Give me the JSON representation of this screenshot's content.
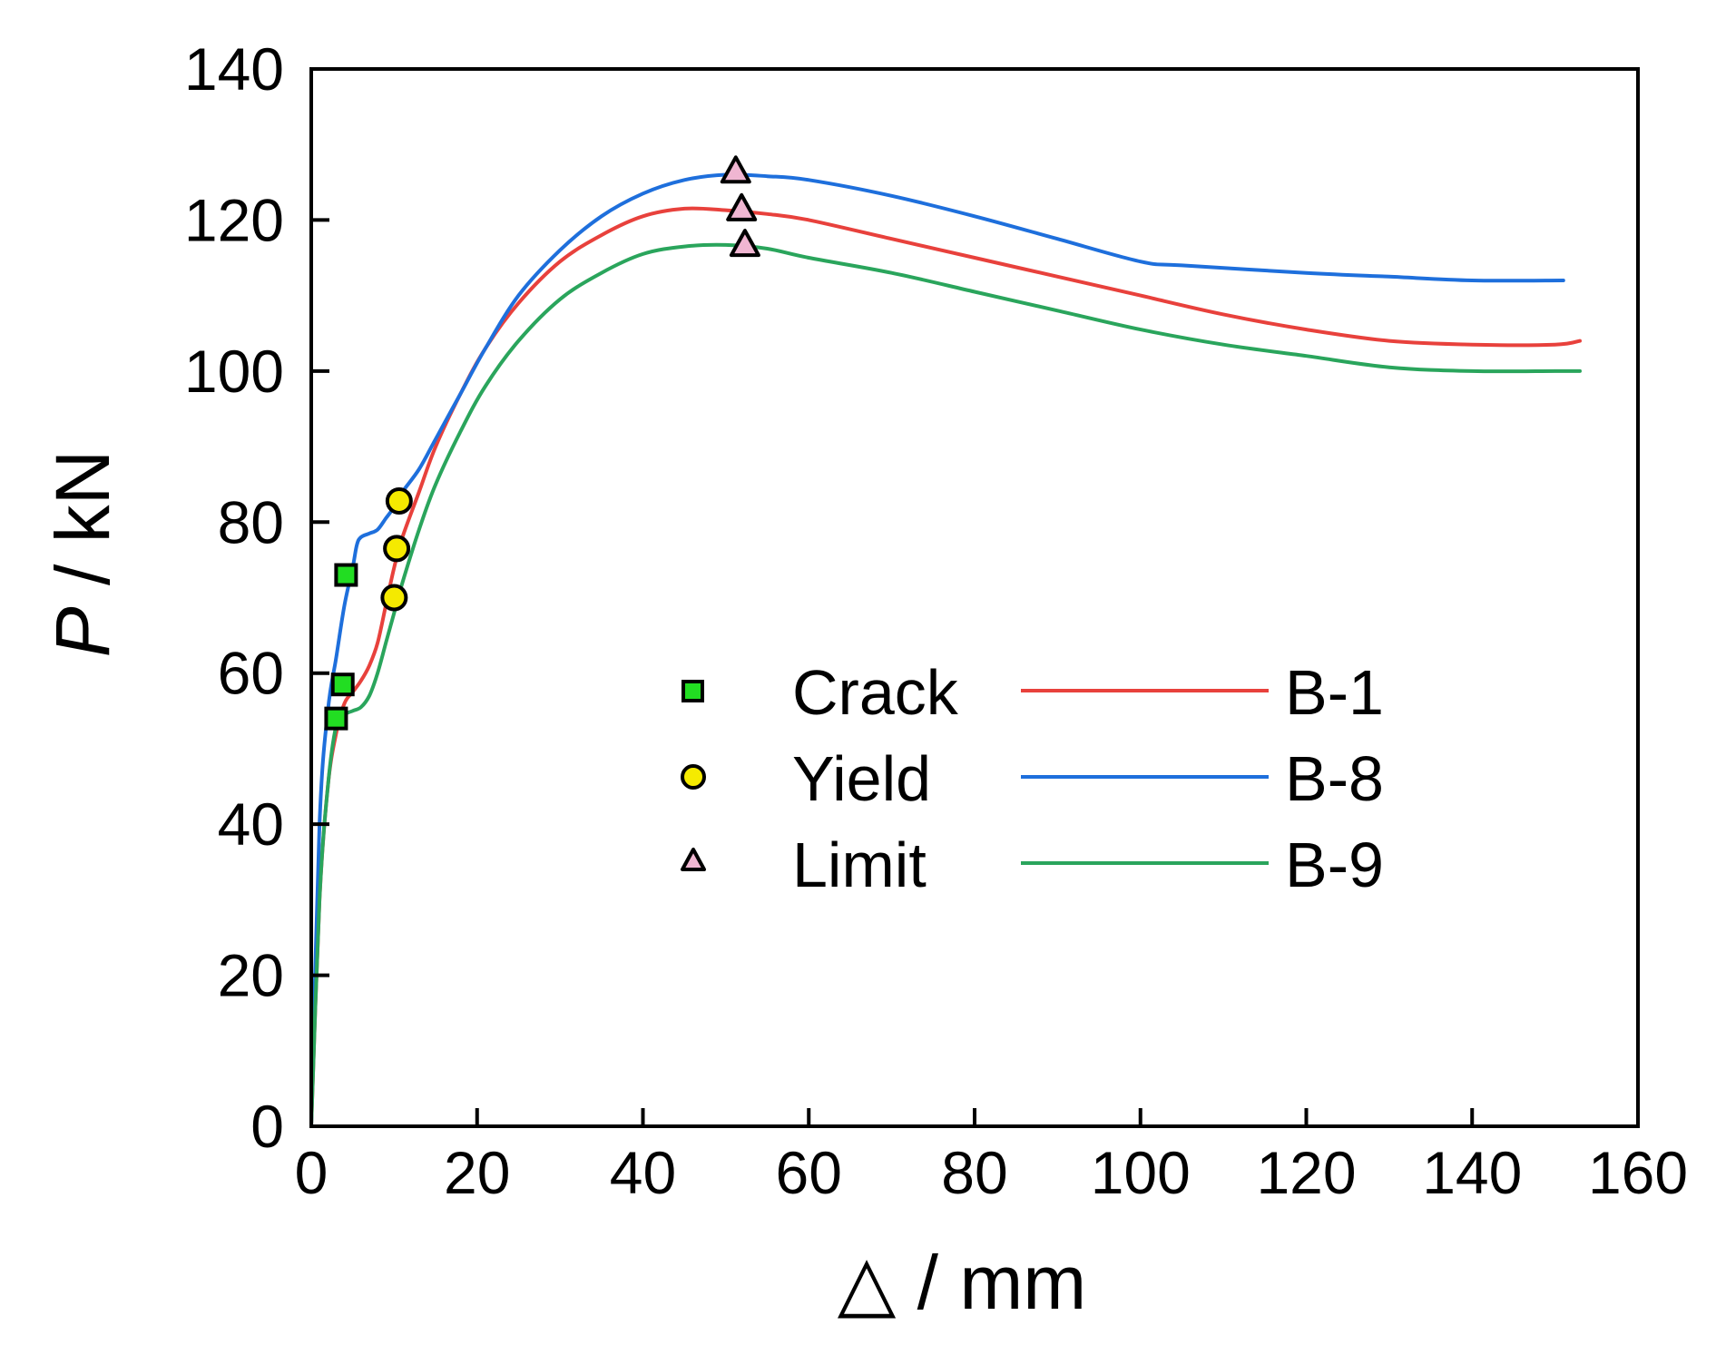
{
  "chart_data": {
    "type": "line",
    "xlabel_symbol": "△",
    "xlabel_unit": " / mm",
    "ylabel_symbol": "P",
    "ylabel_unit": " / kN",
    "xlim": [
      0,
      160
    ],
    "ylim": [
      0,
      140
    ],
    "xticks": [
      0,
      20,
      40,
      60,
      80,
      100,
      120,
      140,
      160
    ],
    "yticks": [
      0,
      20,
      40,
      60,
      80,
      100,
      120,
      140
    ],
    "grid": false,
    "legend_position": "lower-center",
    "series": [
      {
        "name": "B-1",
        "color": "#e8413c",
        "x": [
          0,
          1,
          2,
          3,
          4,
          5,
          6,
          7,
          8,
          9,
          10,
          11,
          13,
          15,
          18,
          21,
          25,
          30,
          35,
          40,
          45,
          50,
          55,
          60,
          70,
          80,
          90,
          100,
          110,
          120,
          130,
          140,
          150,
          153
        ],
        "y": [
          0,
          30,
          45,
          52,
          56,
          57.5,
          59,
          61,
          64,
          69,
          74,
          78,
          84,
          90,
          97,
          103,
          109,
          114.5,
          118,
          120.5,
          121.5,
          121.3,
          120.8,
          120,
          117.5,
          115,
          112.5,
          110,
          107.5,
          105.5,
          104,
          103.5,
          103.5,
          104
        ]
      },
      {
        "name": "B-8",
        "color": "#1e6fdc",
        "x": [
          0,
          1,
          2,
          3,
          4,
          5,
          5.5,
          6,
          7,
          8,
          9,
          10,
          11,
          13,
          15,
          18,
          21,
          25,
          30,
          35,
          40,
          45,
          50,
          55,
          60,
          70,
          80,
          90,
          100,
          105,
          120,
          130,
          140,
          151
        ],
        "y": [
          0,
          40,
          55,
          62,
          69,
          74,
          77,
          78,
          78.5,
          79,
          80.5,
          82,
          84,
          87,
          91,
          97,
          103,
          110,
          116,
          120.5,
          123.5,
          125.3,
          126,
          125.8,
          125.3,
          123.2,
          120.5,
          117.5,
          114.5,
          114,
          113,
          112.5,
          112,
          112
        ]
      },
      {
        "name": "B-9",
        "color": "#2aa55c",
        "x": [
          0,
          1,
          2,
          3,
          4,
          5,
          6,
          7,
          8,
          9,
          10,
          11,
          13,
          15,
          18,
          21,
          25,
          30,
          35,
          40,
          45,
          50,
          55,
          60,
          70,
          80,
          90,
          100,
          110,
          120,
          130,
          140,
          150,
          153
        ],
        "y": [
          0,
          30,
          45,
          53,
          54.5,
          55,
          55.5,
          57,
          60,
          64,
          68,
          72,
          79,
          85,
          92,
          98,
          104,
          109.5,
          113,
          115.5,
          116.5,
          116.7,
          116.2,
          115,
          113,
          110.5,
          108,
          105.5,
          103.5,
          102,
          100.5,
          100,
          100,
          100
        ]
      }
    ],
    "marker_series": [
      {
        "name": "Crack",
        "shape": "square",
        "fill": "#22dd22",
        "points": [
          [
            3.0,
            54.0
          ],
          [
            3.8,
            58.5
          ],
          [
            4.2,
            73.0
          ]
        ]
      },
      {
        "name": "Yield",
        "shape": "circle",
        "fill": "#f5ea00",
        "points": [
          [
            10.0,
            70.0
          ],
          [
            10.3,
            76.5
          ],
          [
            10.6,
            82.8
          ]
        ]
      },
      {
        "name": "Limit",
        "shape": "triangle",
        "fill": "#f0b6d2",
        "points": [
          [
            51.2,
            126.5
          ],
          [
            51.9,
            121.5
          ],
          [
            52.3,
            116.8
          ]
        ]
      }
    ]
  }
}
